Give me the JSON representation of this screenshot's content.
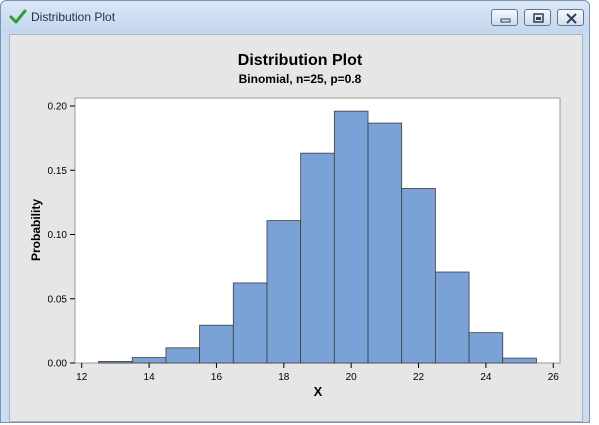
{
  "window": {
    "title": "Distribution Plot",
    "icon": "green-checkmark-icon",
    "controls": [
      "minimize-icon",
      "restore-icon",
      "close-icon"
    ]
  },
  "colors": {
    "bar_fill": "#7aa2d6",
    "bar_stroke": "#3c3c3c",
    "panel_bg": "#e6e6e6",
    "plot_bg": "#ffffff",
    "title_bar": "#c9dcf0"
  },
  "chart_data": {
    "type": "bar",
    "title": "Distribution Plot",
    "subtitle": "Binomial, n=25, p=0.8",
    "xlabel": "X",
    "ylabel": "Probability",
    "x": [
      13,
      14,
      15,
      16,
      17,
      18,
      19,
      20,
      21,
      22,
      23,
      24,
      25
    ],
    "values": [
      0.0012,
      0.0042,
      0.0118,
      0.0294,
      0.0623,
      0.1108,
      0.1633,
      0.196,
      0.1867,
      0.1358,
      0.0708,
      0.0236,
      0.0038
    ],
    "xlim": [
      11.8,
      26.2
    ],
    "ylim": [
      0,
      0.2
    ],
    "xticks": [
      12,
      14,
      16,
      18,
      20,
      22,
      24,
      26
    ],
    "xtick_labels": [
      "12",
      "14",
      "16",
      "18",
      "20",
      "22",
      "24",
      "26"
    ],
    "yticks": [
      0,
      0.05,
      0.1,
      0.15,
      0.2
    ],
    "ytick_labels": [
      "0.00",
      "0.05",
      "0.10",
      "0.15",
      "0.20"
    ],
    "grid": false,
    "legend": "none"
  }
}
